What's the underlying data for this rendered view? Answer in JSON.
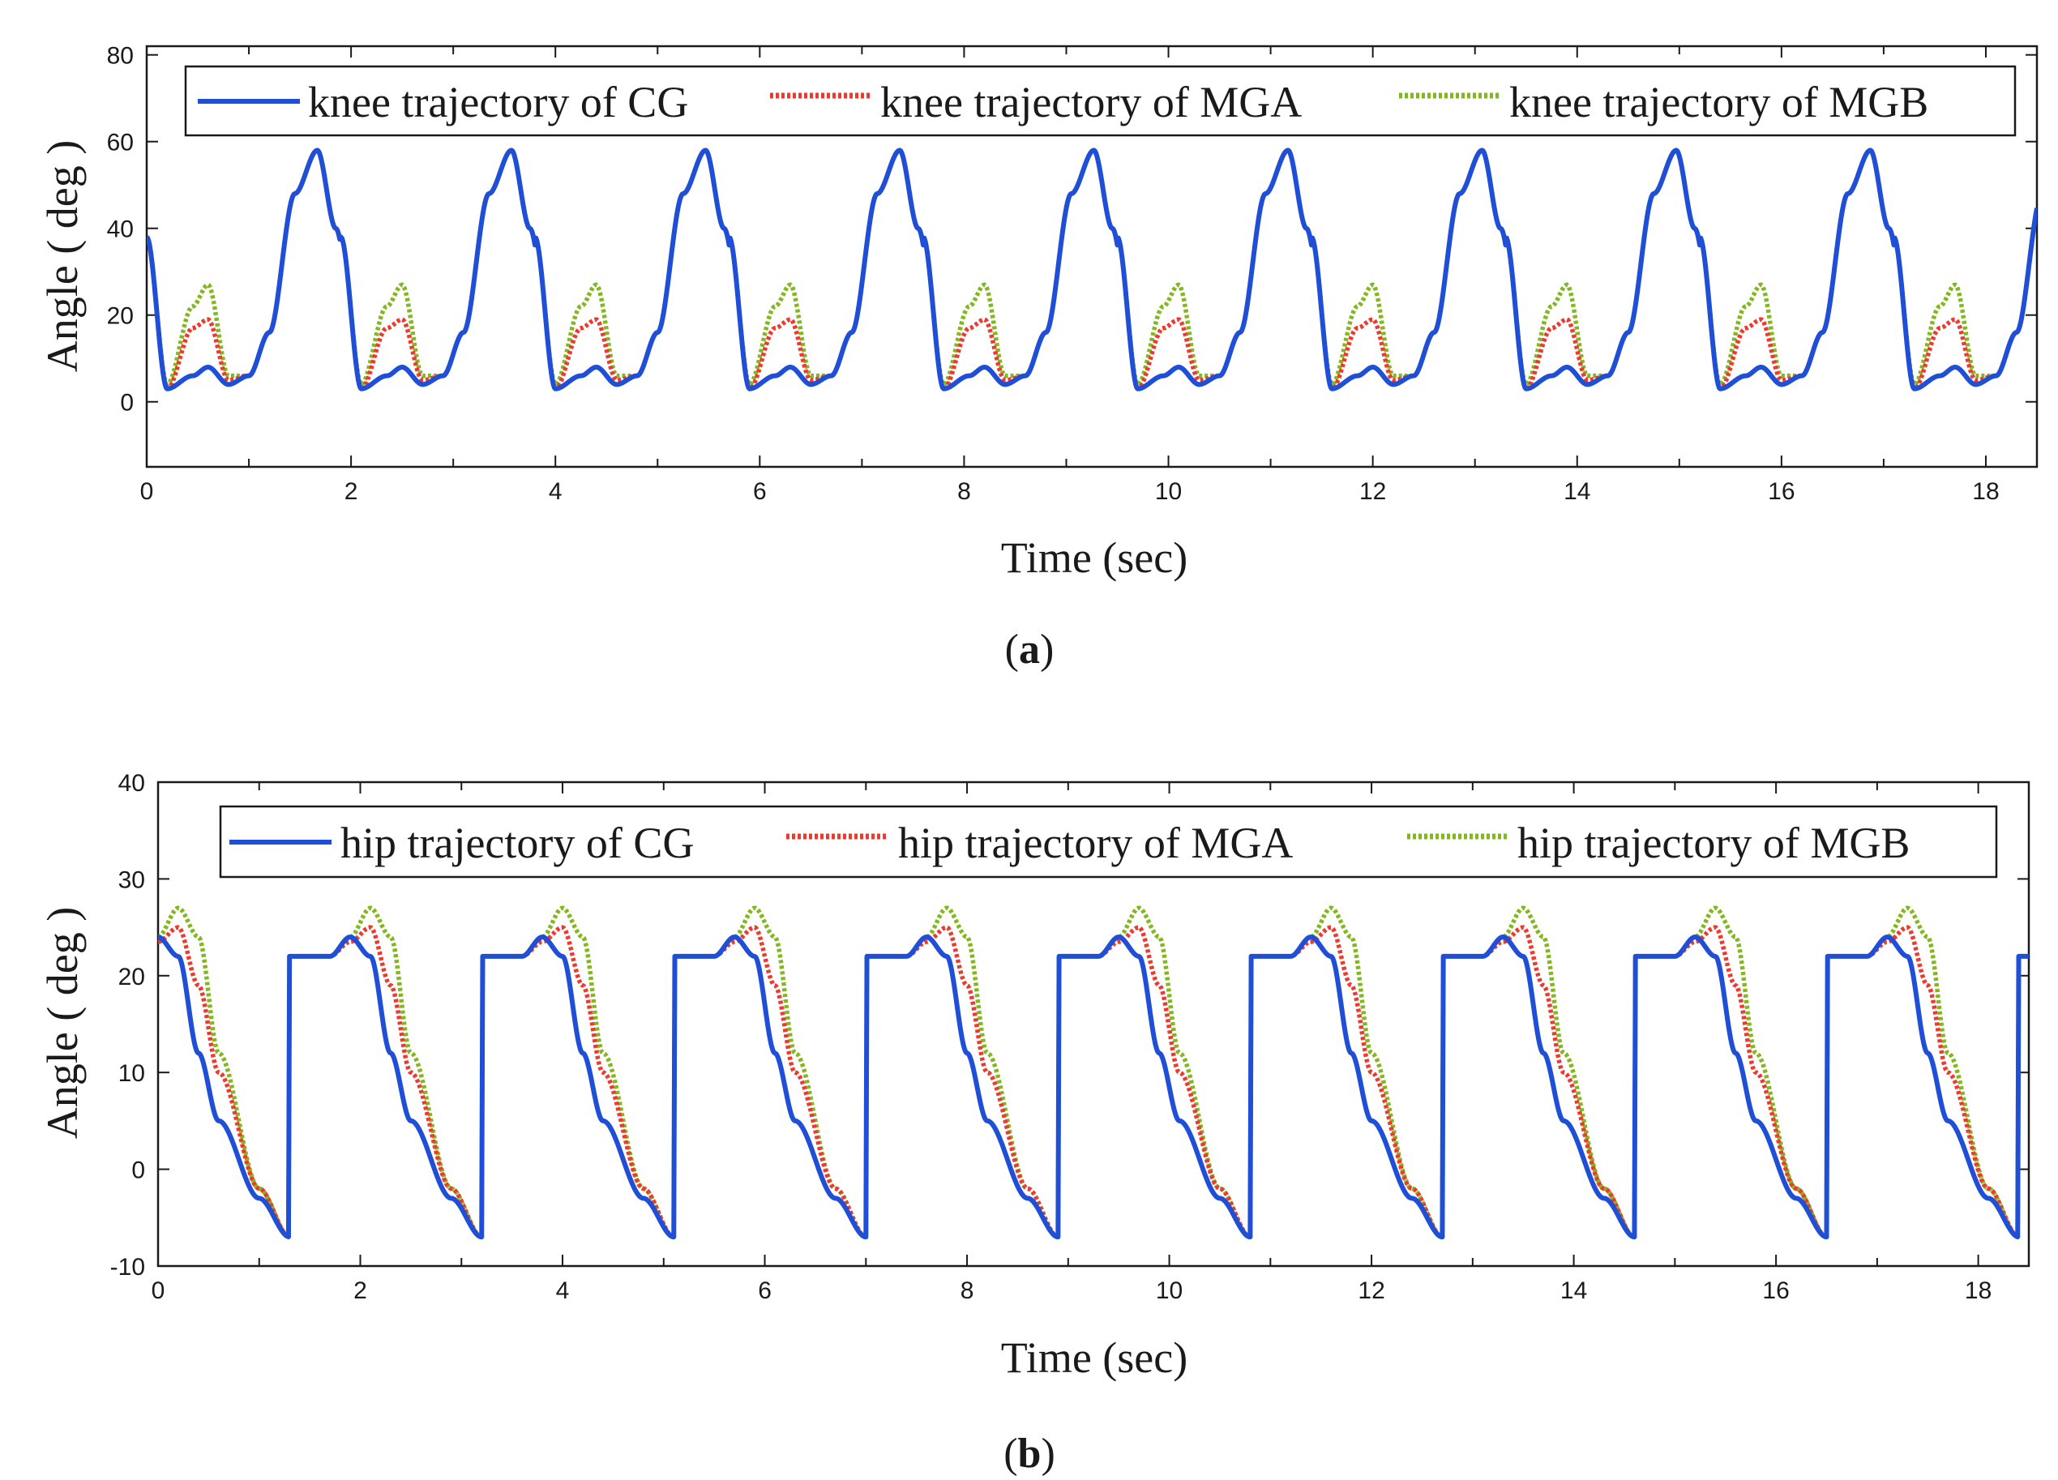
{
  "colors": {
    "CG": "#1f4fd6",
    "MGA": "#ee3a2e",
    "MGB": "#82b81e"
  },
  "chart_data": [
    {
      "type": "line",
      "panel_label": "(a)",
      "caption_open": "(",
      "caption_letter": "a",
      "caption_close": ")",
      "xlabel": "Time (sec)",
      "ylabel": "Angle ( deg )",
      "xlim": [
        0,
        18.5
      ],
      "ylim": [
        -15,
        82
      ],
      "xticks": [
        0,
        2,
        4,
        6,
        8,
        10,
        12,
        14,
        16,
        18
      ],
      "yticks": [
        0,
        20,
        40,
        60,
        80
      ],
      "legend_position": "top",
      "series": [
        {
          "key": "CG",
          "name": "knee trajectory of CG",
          "style": "solid"
        },
        {
          "key": "MGA",
          "name": "knee trajectory of MGA",
          "style": "dotted"
        },
        {
          "key": "MGB",
          "name": "knee trajectory of MGB",
          "style": "dotted"
        }
      ],
      "cycle_period_sec": 1.9,
      "series_points_per_cycle": {
        "t_offset_sec": [
          0.0,
          0.2,
          0.45,
          0.6,
          0.8,
          1.0,
          1.2,
          1.45,
          1.67,
          1.85,
          2.1
        ],
        "CG": [
          38,
          3,
          6,
          8,
          4,
          6,
          16,
          48,
          58,
          40,
          3
        ],
        "MGA": [
          38,
          3,
          17,
          19,
          5,
          6,
          16,
          48,
          58,
          40,
          3
        ],
        "MGB": [
          38,
          4,
          22,
          27,
          6,
          6,
          16,
          48,
          58,
          40,
          4
        ]
      }
    },
    {
      "type": "line",
      "panel_label": "(b)",
      "caption_open": "(",
      "caption_letter": "b",
      "caption_close": ")",
      "xlabel": "Time (sec)",
      "ylabel": "Angle ( deg )",
      "xlim": [
        0,
        18.5
      ],
      "ylim": [
        -10,
        40
      ],
      "xticks": [
        0,
        2,
        4,
        6,
        8,
        10,
        12,
        14,
        16,
        18
      ],
      "yticks": [
        -10,
        0,
        10,
        20,
        30,
        40
      ],
      "legend_position": "top",
      "series": [
        {
          "key": "CG",
          "name": "hip trajectory of CG",
          "style": "solid"
        },
        {
          "key": "MGA",
          "name": "hip trajectory of MGA",
          "style": "dotted"
        },
        {
          "key": "MGB",
          "name": "hip trajectory of MGB",
          "style": "dotted"
        }
      ],
      "cycle_period_sec": 1.9,
      "series_points_per_cycle": {
        "t_offset_sec": [
          -0.2,
          0.0,
          0.2,
          0.4,
          0.6,
          1.0,
          1.3
        ],
        "CG": [
          22,
          24,
          22,
          12,
          5,
          -3,
          -7
        ],
        "MGA": [
          22,
          23.5,
          25,
          19,
          10,
          -2,
          -7
        ],
        "MGB": [
          22,
          24,
          27,
          24,
          12,
          -2,
          -7
        ]
      }
    }
  ]
}
